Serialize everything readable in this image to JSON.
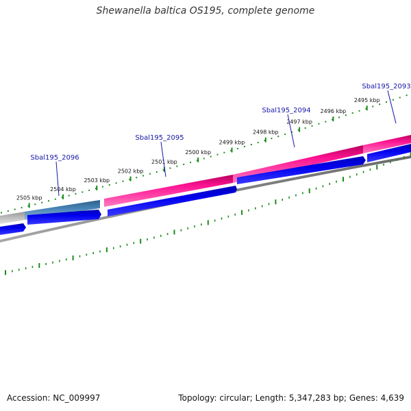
{
  "title": "Shewanella baltica OS195, complete genome",
  "footer": {
    "accession": "Accession: NC_009997",
    "summary": "Topology: circular; Length: 5,347,283 bp; Genes: 4,639"
  },
  "scale_ticks": [
    {
      "kbp": 2505,
      "label": "2505 kbp"
    },
    {
      "kbp": 2504,
      "label": "2504 kbp"
    },
    {
      "kbp": 2503,
      "label": "2503 kbp"
    },
    {
      "kbp": 2502,
      "label": "2502 kbp"
    },
    {
      "kbp": 2501,
      "label": "2501 kbp"
    },
    {
      "kbp": 2500,
      "label": "2500 kbp"
    },
    {
      "kbp": 2499,
      "label": "2499 kbp"
    },
    {
      "kbp": 2498,
      "label": "2498 kbp"
    },
    {
      "kbp": 2497,
      "label": "2497 kbp"
    },
    {
      "kbp": 2496,
      "label": "2496 kbp"
    },
    {
      "kbp": 2495,
      "label": "2495 kbp"
    }
  ],
  "gene_labels": [
    {
      "id": "sbal195-2096",
      "label": "Sbal195_2096"
    },
    {
      "id": "sbal195-2095",
      "label": "Sbal195_2095"
    },
    {
      "id": "sbal195-2094",
      "label": "Sbal195_2094"
    },
    {
      "id": "sbal195-2093",
      "label": "Sbal195_2093"
    }
  ],
  "colors": {
    "grid": "#1a8a1a",
    "gene_blue": "#0000ee",
    "pink": "#ff1493",
    "steel": "#4682b4",
    "gray": "#bbbbbb",
    "backbone": "#808080",
    "label_blue": "#1515a8"
  }
}
